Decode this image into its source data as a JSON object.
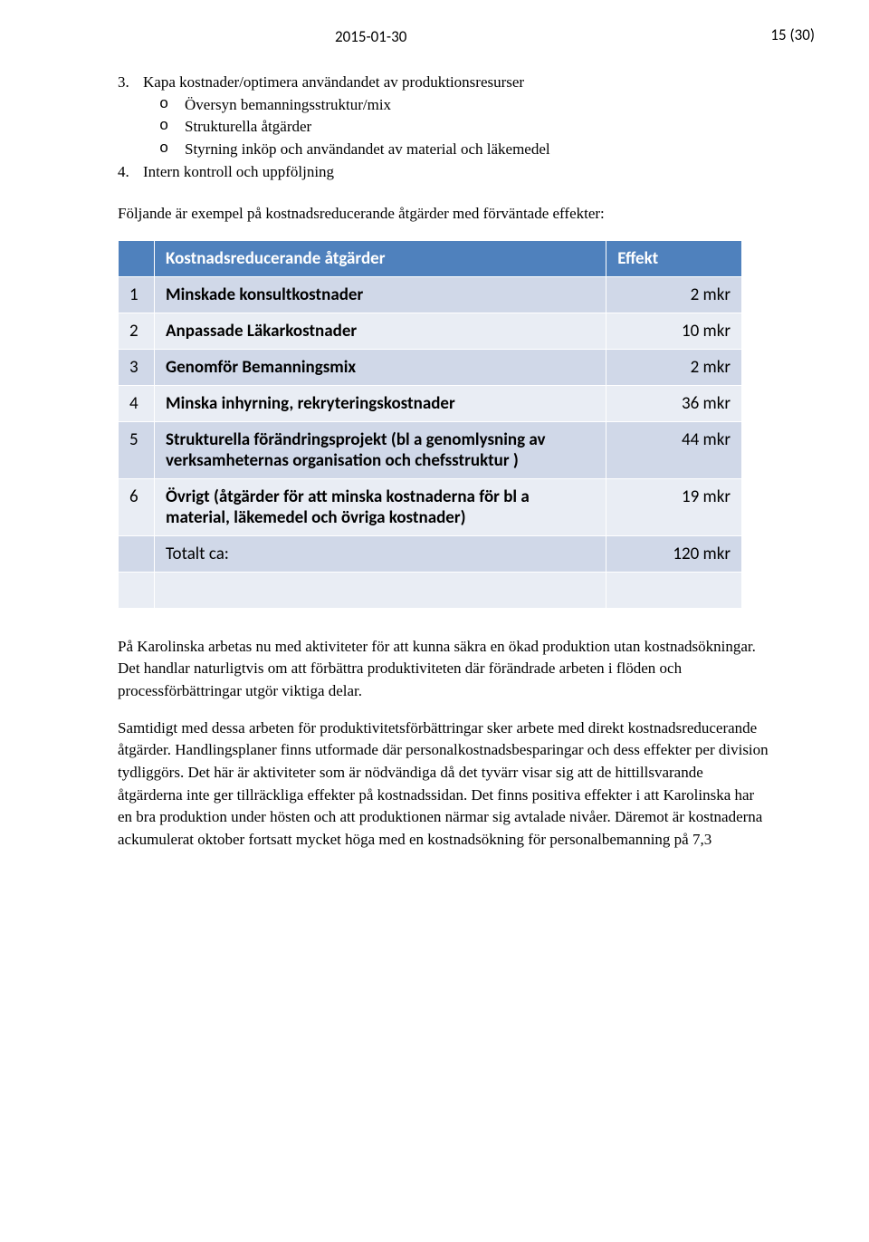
{
  "page_number": "15 (30)",
  "date": "2015-01-30",
  "list": {
    "item3_num": "3.",
    "item3_text": "Kapa kostnader/optimera användandet av produktionsresurser",
    "sub_bullet": "o",
    "sub1": "Översyn bemanningsstruktur/mix",
    "sub2": "Strukturella åtgärder",
    "sub3": "Styrning inköp och användandet av material och läkemedel",
    "item4_num": "4.",
    "item4_text": "Intern kontroll och uppföljning"
  },
  "intro_para": "Följande är exempel på kostnadsreducerande åtgärder med förväntade effekter:",
  "table": {
    "colors": {
      "header_bg": "#4f81bd",
      "row_odd_bg": "#d0d8e8",
      "row_even_bg": "#e9edf4",
      "border": "#ffffff"
    },
    "header_desc": "Kostnadsreducerande åtgärder",
    "header_eff": "Effekt",
    "rows": [
      {
        "n": "1",
        "desc": "Minskade konsultkostnader",
        "eff": "2 mkr"
      },
      {
        "n": "2",
        "desc": "Anpassade Läkarkostnader",
        "eff": "10 mkr"
      },
      {
        "n": "3",
        "desc": "Genomför Bemanningsmix",
        "eff": "2 mkr"
      },
      {
        "n": "4",
        "desc": "Minska inhyrning, rekryteringskostnader",
        "eff": "36 mkr"
      },
      {
        "n": "5",
        "desc": "Strukturella förändringsprojekt (bl a genomlysning av verksamheternas organisation och chefsstruktur )",
        "eff": "44 mkr"
      },
      {
        "n": "6",
        "desc": "Övrigt (åtgärder för att minska kostnaderna för bl a material, läkemedel och övriga kostnader)",
        "eff": "19 mkr"
      }
    ],
    "total_desc": "Totalt ca:",
    "total_eff": "120 mkr"
  },
  "para1": "På Karolinska arbetas nu med aktiviteter för att kunna säkra en ökad produktion utan kostnadsökningar. Det handlar naturligtvis om att förbättra produktiviteten där förändrade arbeten i flöden och processförbättringar utgör viktiga delar.",
  "para2": "Samtidigt med dessa arbeten för produktivitetsförbättringar sker arbete med direkt kostnadsreducerande åtgärder. Handlingsplaner finns utformade där personalkostnadsbesparingar och dess effekter per division tydliggörs. Det här är aktiviteter som är nödvändiga då det tyvärr visar sig att de hittillsvarande åtgärderna inte ger tillräckliga effekter på kostnadssidan. Det finns positiva effekter i att Karolinska har en bra produktion under hösten och att produktionen närmar sig avtalade nivåer. Däremot är kostnaderna ackumulerat oktober fortsatt mycket höga med en kostnadsökning för personalbemanning på 7,3"
}
